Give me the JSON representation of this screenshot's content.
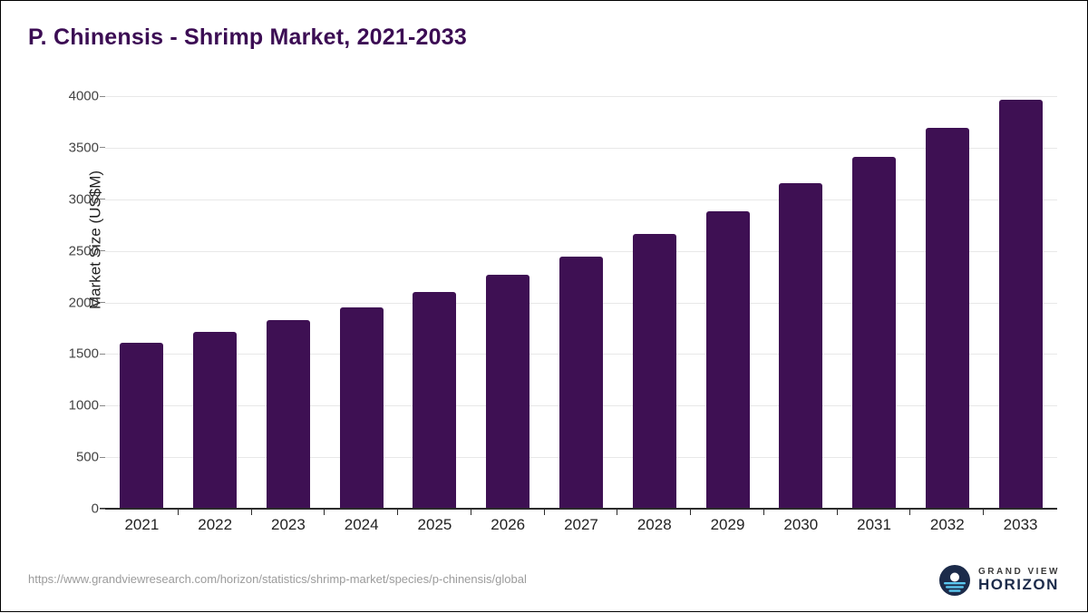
{
  "title": "P. Chinensis - Shrimp Market, 2021-2033",
  "source_url": "https://www.grandviewresearch.com/horizon/statistics/shrimp-market/species/p-chinensis/global",
  "logo": {
    "top_label": "GRAND VIEW",
    "bottom_label": "HORIZON"
  },
  "colors": {
    "bar": "#3e1053",
    "title": "#3c0d54",
    "logo_navy": "#1c2b4a",
    "logo_blue": "#5bc8f0"
  },
  "chart_data": {
    "type": "bar",
    "title": "P. Chinensis - Shrimp Market, 2021-2033",
    "xlabel": "",
    "ylabel": "Market Size (US$M)",
    "categories": [
      "2021",
      "2022",
      "2023",
      "2024",
      "2025",
      "2026",
      "2027",
      "2028",
      "2029",
      "2030",
      "2031",
      "2032",
      "2033"
    ],
    "values": [
      1610,
      1715,
      1830,
      1950,
      2100,
      2265,
      2440,
      2660,
      2885,
      3155,
      3415,
      3690,
      3965
    ],
    "ylim": [
      0,
      4000
    ],
    "ytick_step": 500,
    "grid": true,
    "legend": "none"
  }
}
